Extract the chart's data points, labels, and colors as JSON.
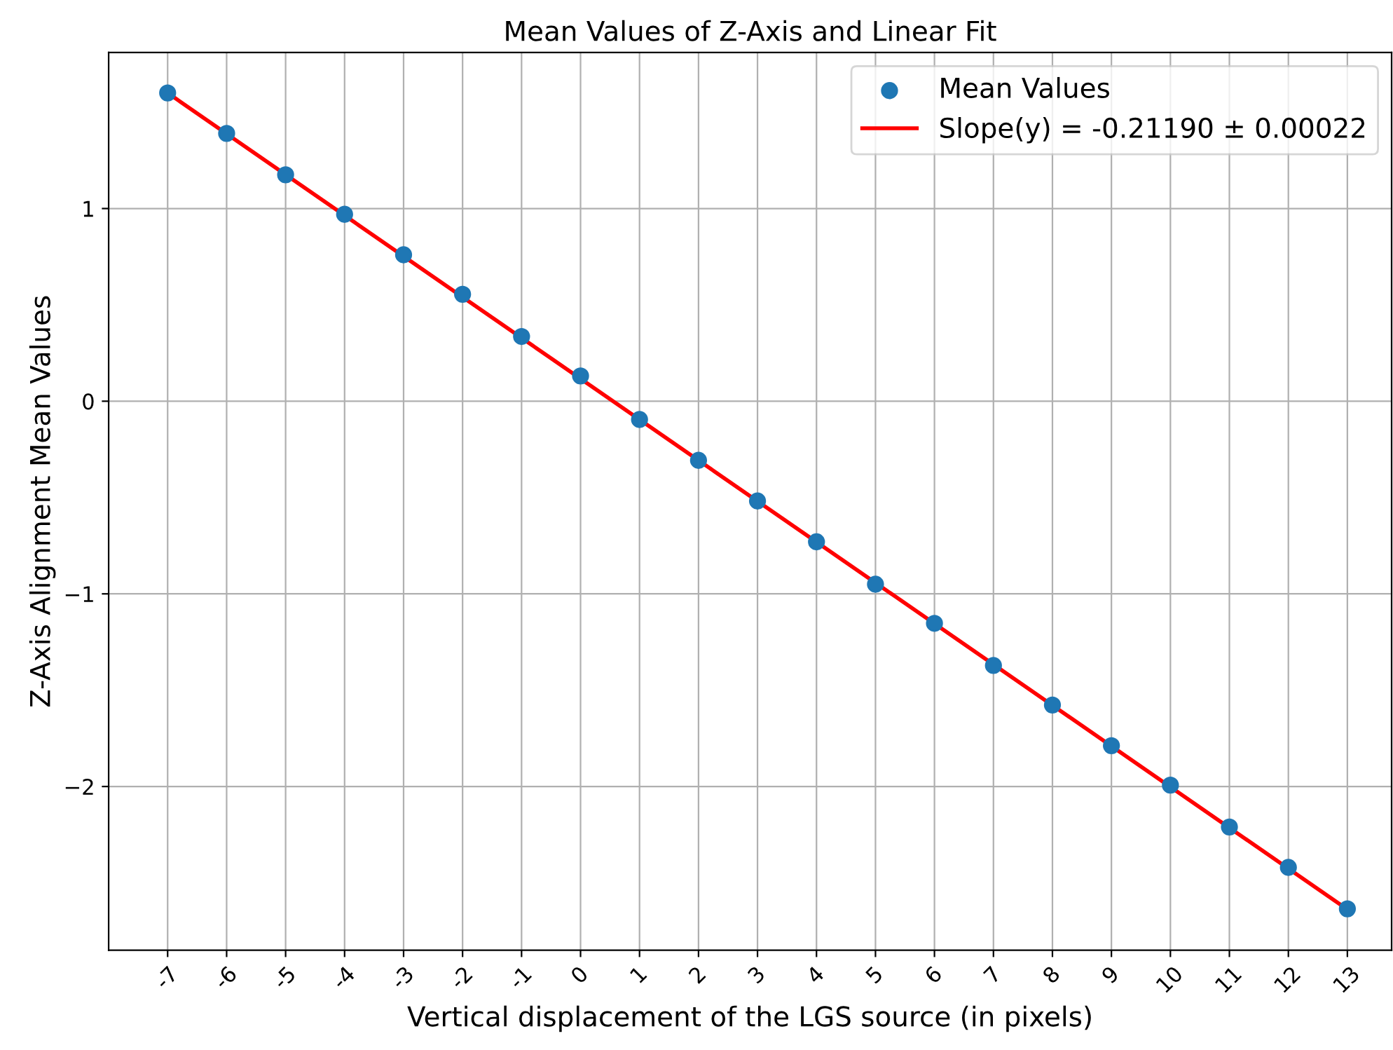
{
  "chart_data": {
    "type": "scatter",
    "title": "Mean Values of Z-Axis and Linear Fit",
    "xlabel": "Vertical displacement of the LGS source (in pixels)",
    "ylabel": "Z-Axis Alignment Mean Values",
    "x": [
      -7,
      -6,
      -5,
      -4,
      -3,
      -2,
      -1,
      0,
      1,
      2,
      3,
      4,
      5,
      6,
      7,
      8,
      9,
      10,
      11,
      12,
      13
    ],
    "series": [
      {
        "name": "Mean Values",
        "color": "#1f77b4",
        "marker": "circle",
        "values": [
          1.6,
          1.39,
          1.175,
          0.97,
          0.76,
          0.555,
          0.336,
          0.131,
          -0.095,
          -0.307,
          -0.518,
          -0.73,
          -0.95,
          -1.153,
          -1.372,
          -1.577,
          -1.788,
          -1.993,
          -2.21,
          -2.42,
          -2.635
        ]
      },
      {
        "name": "Slope(y) = -0.21190 ± 0.00022",
        "type": "line",
        "color": "#ff0000",
        "line_style": "solid",
        "x": [
          -7,
          13
        ],
        "values": [
          1.6,
          -2.638
        ]
      }
    ],
    "xlim": [
      -8,
      13.75
    ],
    "ylim": [
      -2.85,
      1.81
    ],
    "xticks": [
      -7,
      -6,
      -5,
      -4,
      -3,
      -2,
      -1,
      0,
      1,
      2,
      3,
      4,
      5,
      6,
      7,
      8,
      9,
      10,
      11,
      12,
      13
    ],
    "yticks": [
      {
        "value": -2,
        "label": "−2"
      },
      {
        "value": -1,
        "label": "−1"
      },
      0,
      1
    ],
    "grid": true,
    "legend": "top right"
  }
}
